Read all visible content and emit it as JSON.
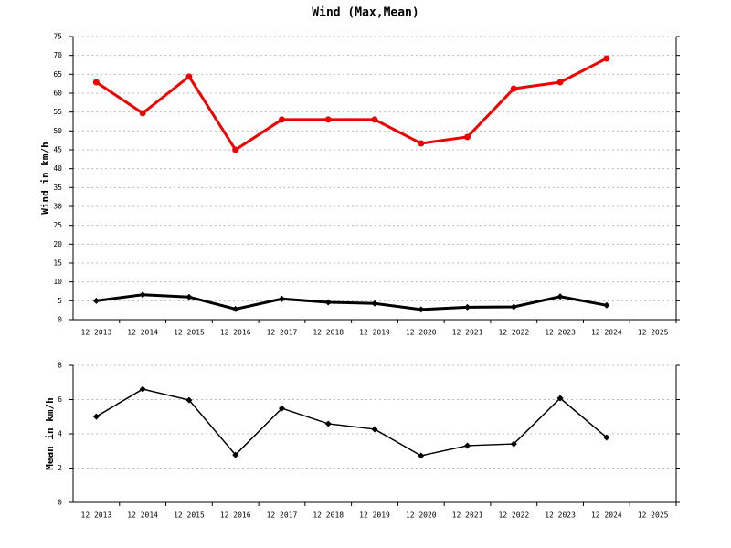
{
  "chart_data": [
    {
      "type": "line",
      "title": "Wind (Max,Mean)",
      "y_label": "Wind in km/h",
      "categories": [
        "12 2013",
        "12 2014",
        "12 2015",
        "12 2016",
        "12 2017",
        "12 2018",
        "12 2019",
        "12 2020",
        "12 2021",
        "12 2022",
        "12 2023",
        "12 2024",
        "12 2025"
      ],
      "series": [
        {
          "color": "#ee0000",
          "marker": "circle",
          "values": [
            62.9,
            54.7,
            64.4,
            45,
            53,
            53,
            53,
            46.7,
            48.4,
            61.2,
            62.9,
            69.2,
            null
          ]
        },
        {
          "color": "#000000",
          "marker": "diamond",
          "values": [
            5.0,
            6.6,
            6.0,
            2.8,
            5.5,
            4.6,
            4.3,
            2.7,
            3.3,
            3.4,
            6.1,
            3.8,
            null
          ]
        }
      ],
      "ylim": [
        0,
        75
      ],
      "yticks": [
        0,
        5,
        10,
        15,
        20,
        25,
        30,
        35,
        40,
        45,
        50,
        55,
        60,
        65,
        70,
        75
      ],
      "grid": true
    },
    {
      "type": "line",
      "y_label": "Mean in km/h",
      "categories": [
        "12 2013",
        "12 2014",
        "12 2015",
        "12 2016",
        "12 2017",
        "12 2018",
        "12 2019",
        "12 2020",
        "12 2021",
        "12 2022",
        "12 2023",
        "12 2024",
        "12 2025"
      ],
      "series": [
        {
          "color": "#000000",
          "marker": "diamond",
          "values": [
            5.01,
            6.61,
            5.97,
            2.77,
            5.49,
            4.59,
            4.27,
            2.72,
            3.31,
            3.41,
            6.08,
            3.79,
            null
          ]
        }
      ],
      "ylim": [
        0,
        8
      ],
      "yticks": [
        0,
        2,
        4,
        6,
        8
      ],
      "grid": true
    }
  ]
}
